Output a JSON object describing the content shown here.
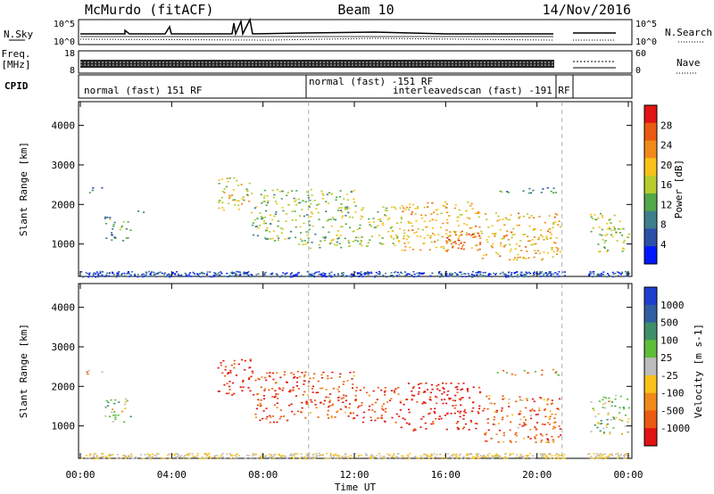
{
  "header": {
    "station": "McMurdo (fitACF)",
    "beam": "Beam 10",
    "date": "14/Nov/2016"
  },
  "left_labels": {
    "nsky": "N.Sky",
    "freq_line1": "Freq.",
    "freq_line2": "[MHz]",
    "cpid": "CPID"
  },
  "right_labels": {
    "nsearch": "N.Search",
    "nave": "Nave"
  },
  "ticks": {
    "noise_top_left": "10^5",
    "noise_bottom_left": "10^0",
    "noise_top_right": "10^5",
    "noise_bottom_right": "10^0",
    "freq_top": "18",
    "freq_bottom": "8",
    "nave_top": "60",
    "nave_bottom": "0"
  },
  "cpid_segments": [
    {
      "label": "normal (fast) 151 RF"
    },
    {
      "label": "normal (fast) -151 RF"
    },
    {
      "label": "interleavedscan (fast) -191 RF"
    }
  ],
  "colors": {
    "power_scale": [
      "#0018ff",
      "#2c4fa8",
      "#3e7f8c",
      "#52a84a",
      "#b8cc2e",
      "#f7c21a",
      "#f18a1a",
      "#ea5a12",
      "#e01414"
    ],
    "velocity_scale": [
      "#1c3fcf",
      "#2f5fa0",
      "#3f8f6a",
      "#5fbd3a",
      "#bcbcbc",
      "#f7c21a",
      "#f18a1a",
      "#ea5a12",
      "#e01414"
    ]
  },
  "chart_data": [
    {
      "type": "heatmap",
      "title": "",
      "xlabel": "Time UT",
      "ylabel": "Slant Range [km]",
      "colorbar_label": "Power [dB]",
      "colorbar_ticks": [
        "28",
        "24",
        "20",
        "16",
        "12",
        "8",
        "4"
      ],
      "x_ticks": [
        "00:00",
        "04:00",
        "08:00",
        "12:00",
        "16:00",
        "20:00",
        "00:00"
      ],
      "y_ticks": [
        "1000",
        "2000",
        "3000",
        "4000"
      ],
      "xlim": [
        0,
        24
      ],
      "ylim": [
        180,
        4600
      ],
      "data_gap_hours": [
        21.2,
        22.2
      ],
      "echo_regions": [
        {
          "t0": 0.2,
          "t1": 1.0,
          "r0": 2300,
          "r1": 2450,
          "value": 8
        },
        {
          "t0": 1.0,
          "t1": 2.2,
          "r0": 1050,
          "r1": 1700,
          "value": 10
        },
        {
          "t0": 2.5,
          "t1": 2.8,
          "r0": 1800,
          "r1": 2000,
          "value": 8
        },
        {
          "t0": 6.0,
          "t1": 7.5,
          "r0": 1800,
          "r1": 2700,
          "value": 18
        },
        {
          "t0": 7.5,
          "t1": 9.5,
          "r0": 1100,
          "r1": 2400,
          "value": 14
        },
        {
          "t0": 9.5,
          "t1": 12.0,
          "r0": 900,
          "r1": 2400,
          "value": 14
        },
        {
          "t0": 12.0,
          "t1": 14.0,
          "r0": 950,
          "r1": 2000,
          "value": 16
        },
        {
          "t0": 14.0,
          "t1": 17.5,
          "r0": 850,
          "r1": 2100,
          "value": 20
        },
        {
          "t0": 16.0,
          "t1": 17.5,
          "r0": 800,
          "r1": 1400,
          "value": 26
        },
        {
          "t0": 17.5,
          "t1": 21.0,
          "r0": 600,
          "r1": 1800,
          "value": 20
        },
        {
          "t0": 18.0,
          "t1": 21.0,
          "r0": 2300,
          "r1": 2450,
          "value": 10
        },
        {
          "t0": 22.3,
          "t1": 24.0,
          "r0": 800,
          "r1": 1800,
          "value": 16
        }
      ]
    },
    {
      "type": "heatmap",
      "title": "",
      "xlabel": "Time UT",
      "ylabel": "Slant Range [km]",
      "colorbar_label": "Velocity [m s-1]",
      "colorbar_ticks": [
        "1000",
        "500",
        "100",
        "25",
        "-25",
        "-100",
        "-500",
        "-1000"
      ],
      "x_ticks": [
        "00:00",
        "04:00",
        "08:00",
        "12:00",
        "16:00",
        "20:00",
        "00:00"
      ],
      "y_ticks": [
        "1000",
        "2000",
        "3000",
        "4000"
      ],
      "xlim": [
        0,
        24
      ],
      "ylim": [
        180,
        4600
      ],
      "data_gap_hours": [
        21.2,
        22.2
      ],
      "echo_regions": [
        {
          "t0": 0.2,
          "t1": 1.0,
          "r0": 2300,
          "r1": 2450,
          "value": 0
        },
        {
          "t0": 1.0,
          "t1": 2.2,
          "r0": 1050,
          "r1": 1700,
          "value": 150
        },
        {
          "t0": 6.0,
          "t1": 7.5,
          "r0": 1800,
          "r1": 2700,
          "value": -300
        },
        {
          "t0": 7.5,
          "t1": 9.5,
          "r0": 1100,
          "r1": 2400,
          "value": -250
        },
        {
          "t0": 9.5,
          "t1": 12.0,
          "r0": 1200,
          "r1": 2400,
          "value": -200
        },
        {
          "t0": 12.0,
          "t1": 14.0,
          "r0": 1100,
          "r1": 2000,
          "value": -250
        },
        {
          "t0": 14.0,
          "t1": 17.5,
          "r0": 900,
          "r1": 2100,
          "value": -350
        },
        {
          "t0": 17.5,
          "t1": 21.0,
          "r0": 600,
          "r1": 1800,
          "value": -150
        },
        {
          "t0": 18.0,
          "t1": 21.0,
          "r0": 2300,
          "r1": 2450,
          "value": 0
        },
        {
          "t0": 22.3,
          "t1": 24.0,
          "r0": 800,
          "r1": 1800,
          "value": 150
        }
      ]
    }
  ]
}
